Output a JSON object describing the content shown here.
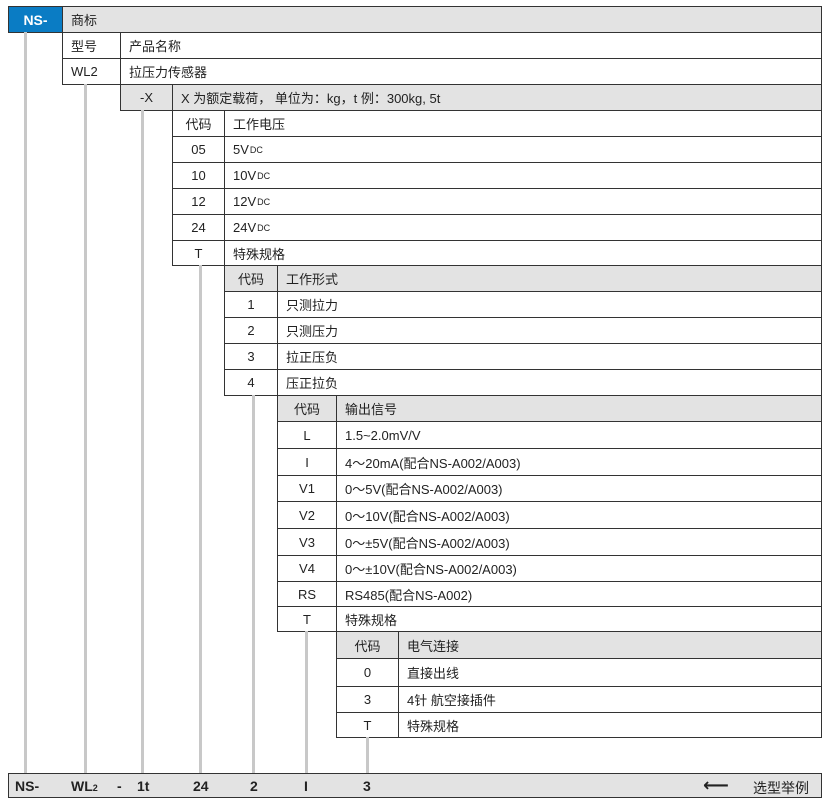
{
  "brand": {
    "code": "NS-",
    "label": "商标"
  },
  "model": {
    "header_code": "型号",
    "header_label": "产品名称",
    "code": "WL2",
    "label": "拉压力传感器"
  },
  "capacity": {
    "code": "-X",
    "label": "X 为额定载荷， 单位为：kg，t 例：300kg, 5t"
  },
  "sections": [
    {
      "header_code": "代码",
      "header_label": "工作电压",
      "rows": [
        {
          "code": "05",
          "label": "5V",
          "sub": "DC"
        },
        {
          "code": "10",
          "label": "10V",
          "sub": "DC"
        },
        {
          "code": "12",
          "label": "12V",
          "sub": "DC"
        },
        {
          "code": "24",
          "label": "24V",
          "sub": "DC"
        },
        {
          "code": "T",
          "label": "特殊规格"
        }
      ]
    },
    {
      "header_code": "代码",
      "header_label": "工作形式",
      "rows": [
        {
          "code": "1",
          "label": "只测拉力"
        },
        {
          "code": "2",
          "label": "只测压力"
        },
        {
          "code": "3",
          "label": "拉正压负"
        },
        {
          "code": "4",
          "label": "压正拉负"
        }
      ]
    },
    {
      "header_code": "代码",
      "header_label": "输出信号",
      "rows": [
        {
          "code": "L",
          "label": "1.5~2.0mV/V"
        },
        {
          "code": "I",
          "label": "4～20mA(配合NS-A002/A003)"
        },
        {
          "code": "V1",
          "label": "0～5V(配合NS-A002/A003)"
        },
        {
          "code": "V2",
          "label": "0～10V(配合NS-A002/A003)"
        },
        {
          "code": "V3",
          "label": "0～±5V(配合NS-A002/A003)"
        },
        {
          "code": "V4",
          "label": "0～±10V(配合NS-A002/A003)"
        },
        {
          "code": "RS",
          "label": "RS485(配合NS-A002)"
        },
        {
          "code": "T",
          "label": "特殊规格"
        }
      ]
    },
    {
      "header_code": "代码",
      "header_label": "电气连接",
      "rows": [
        {
          "code": "0",
          "label": "直接出线"
        },
        {
          "code": "3",
          "label": "4针 航空接插件"
        },
        {
          "code": "T",
          "label": "特殊规格"
        }
      ]
    }
  ],
  "example": {
    "parts": [
      "NS-",
      "WL",
      "2",
      "-",
      "1t",
      "24",
      "2",
      "I",
      "3"
    ],
    "label": "选型举例",
    "arrow": "left-arrow-icon"
  },
  "colors": {
    "brand_blue": "#0a7cc4",
    "gray": "#e3e3e3"
  }
}
